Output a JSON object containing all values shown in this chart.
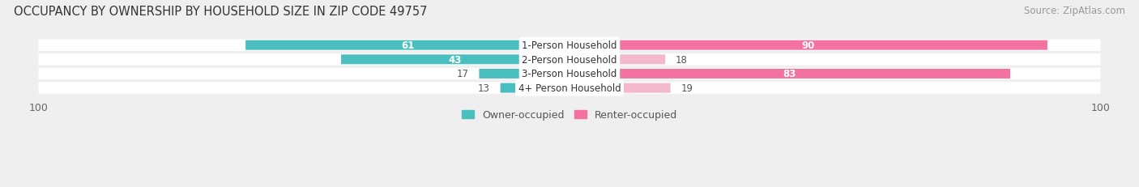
{
  "title": "OCCUPANCY BY OWNERSHIP BY HOUSEHOLD SIZE IN ZIP CODE 49757",
  "source": "Source: ZipAtlas.com",
  "categories": [
    "1-Person Household",
    "2-Person Household",
    "3-Person Household",
    "4+ Person Household"
  ],
  "owner_values": [
    61,
    43,
    17,
    13
  ],
  "renter_values": [
    90,
    18,
    83,
    19
  ],
  "owner_color": "#4bbfbf",
  "renter_color_strong": "#f472a0",
  "renter_color_light": "#f4b8cc",
  "bg_color": "#efefef",
  "row_bg_color": "#ffffff",
  "max_val": 100,
  "title_fontsize": 10.5,
  "source_fontsize": 8.5,
  "label_fontsize": 8.5,
  "value_fontsize": 8.5,
  "tick_fontsize": 9,
  "legend_fontsize": 9
}
